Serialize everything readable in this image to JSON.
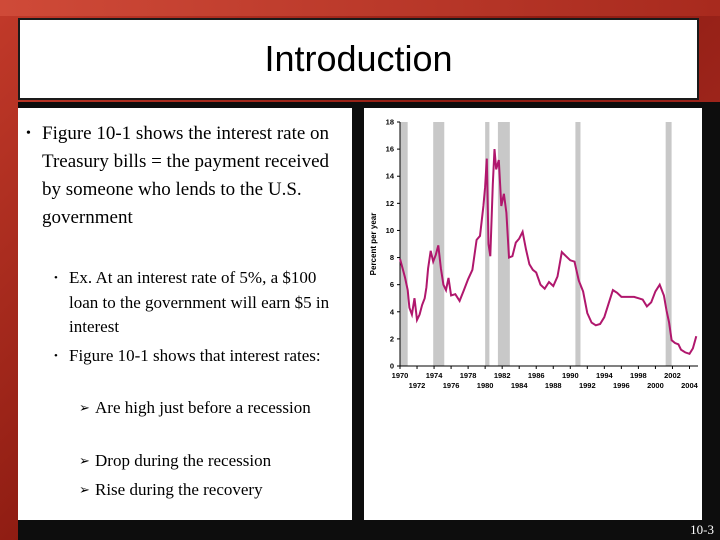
{
  "slide": {
    "title": "Introduction",
    "slide_number": "10-3"
  },
  "bullets": {
    "main": "Figure 10-1 shows the interest rate on Treasury bills = the payment received by someone who lends to the U.S. government",
    "sub1": "Ex. At an interest rate of 5%, a $100 loan to the government will earn $5 in interest",
    "sub2": "Figure 10-1 shows that interest rates:",
    "sub2_items": [
      "Are high just before a recession",
      "Drop during the recession",
      "Rise during the recovery"
    ]
  },
  "colors": {
    "line": "#b0176d",
    "recession": "#c8c8c8",
    "background": "#a82a1e"
  },
  "chart_data": {
    "type": "line",
    "ylabel": "Percent per year",
    "ylim": [
      0,
      18
    ],
    "xlim": [
      1970,
      2005
    ],
    "y_ticks": [
      "0",
      "2",
      "4",
      "6",
      "8",
      "10",
      "12",
      "14",
      "16",
      "18"
    ],
    "x_ticks_top": [
      "1970",
      "1974",
      "1978",
      "1982",
      "1986",
      "1990",
      "1994",
      "1998",
      "2002"
    ],
    "x_ticks_bottom": [
      "1972",
      "1976",
      "1980",
      "1984",
      "1988",
      "1992",
      "1996",
      "2000",
      "2004"
    ],
    "recessions": [
      [
        1970.0,
        1970.9
      ],
      [
        1973.9,
        1975.2
      ],
      [
        1980.0,
        1980.5
      ],
      [
        1981.5,
        1982.9
      ],
      [
        1990.6,
        1991.2
      ],
      [
        2001.2,
        2001.9
      ]
    ],
    "series": [
      {
        "x": [
          1970.0,
          1970.3,
          1970.6,
          1970.9,
          1971.1,
          1971.4,
          1971.7,
          1972.0,
          1972.3,
          1972.6,
          1972.9,
          1973.1,
          1973.3,
          1973.6,
          1973.9,
          1974.2,
          1974.5,
          1974.8,
          1975.1,
          1975.4,
          1975.7,
          1976.0,
          1976.5,
          1977.0,
          1977.5,
          1978.0,
          1978.5,
          1979.0,
          1979.4,
          1979.8,
          1980.0,
          1980.2,
          1980.4,
          1980.6,
          1980.9,
          1981.1,
          1981.3,
          1981.6,
          1981.9,
          1982.2,
          1982.5,
          1982.8,
          1983.2,
          1983.6,
          1984.0,
          1984.4,
          1984.8,
          1985.2,
          1985.6,
          1986.0,
          1986.5,
          1987.0,
          1987.5,
          1988.0,
          1988.5,
          1989.0,
          1989.5,
          1990.0,
          1990.5,
          1991.0,
          1991.5,
          1992.0,
          1992.5,
          1993.0,
          1993.5,
          1994.0,
          1994.5,
          1995.0,
          1995.5,
          1996.0,
          1996.5,
          1997.0,
          1997.5,
          1998.0,
          1998.5,
          1999.0,
          1999.5,
          2000.0,
          2000.5,
          2001.0,
          2001.3,
          2001.6,
          2001.9,
          2002.3,
          2002.7,
          2003.0,
          2003.5,
          2004.0,
          2004.4,
          2004.8
        ],
        "y": [
          7.9,
          7.2,
          6.5,
          5.6,
          4.3,
          3.8,
          5.0,
          3.4,
          3.8,
          4.5,
          5.0,
          5.8,
          7.2,
          8.5,
          7.7,
          8.2,
          8.9,
          7.2,
          6.0,
          5.6,
          6.5,
          5.2,
          5.3,
          4.8,
          5.6,
          6.4,
          7.1,
          9.3,
          9.6,
          11.8,
          13.2,
          15.3,
          9.0,
          8.1,
          13.4,
          16.0,
          14.5,
          15.2,
          11.8,
          12.7,
          11.3,
          8.0,
          8.1,
          9.1,
          9.4,
          9.9,
          8.6,
          7.5,
          7.1,
          6.9,
          6.0,
          5.7,
          6.2,
          5.9,
          6.6,
          8.4,
          8.1,
          7.8,
          7.7,
          6.3,
          5.5,
          3.9,
          3.2,
          3.0,
          3.1,
          3.6,
          4.6,
          5.6,
          5.4,
          5.1,
          5.1,
          5.1,
          5.1,
          5.0,
          4.9,
          4.4,
          4.7,
          5.5,
          6.0,
          5.2,
          4.1,
          3.2,
          1.9,
          1.7,
          1.6,
          1.2,
          1.0,
          0.9,
          1.3,
          2.2
        ]
      }
    ]
  }
}
